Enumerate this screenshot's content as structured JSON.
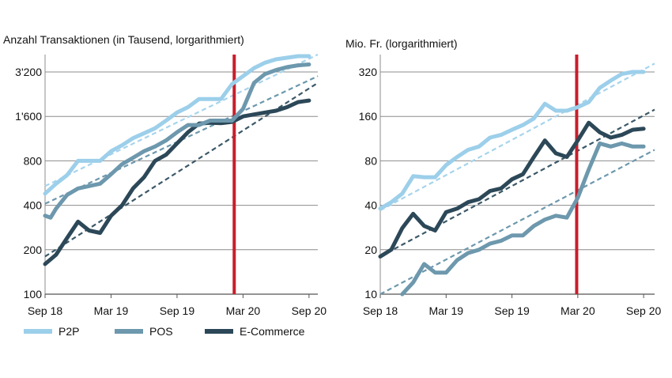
{
  "chart_data": [
    {
      "type": "line",
      "title": "Anzahl Transaktionen (in Tausend, lorgarithmiert)",
      "xlabel": "",
      "ylabel": "",
      "y_scale": "log",
      "ylim": [
        100,
        4200
      ],
      "y_ticks": [
        100,
        200,
        400,
        800,
        1600,
        3200
      ],
      "y_tick_labels": [
        "100",
        "200",
        "400",
        "800",
        "1'600",
        "3'200"
      ],
      "x_ticks": [
        "Sep 18",
        "Mar 19",
        "Sep 19",
        "Mar 20",
        "Sep 20"
      ],
      "x_tick_months": [
        0,
        6,
        12,
        18,
        24
      ],
      "x_range_months": [
        0,
        24.8
      ],
      "marker_month": 17.2,
      "grid": true,
      "legend": "bottom",
      "series": [
        {
          "name": "P2P",
          "color": "#9ccfea",
          "x": [
            0,
            1,
            2,
            3,
            4,
            5,
            6,
            7,
            8,
            9,
            10,
            11,
            12,
            13,
            14,
            15,
            16,
            17,
            18,
            19,
            20,
            21,
            22,
            23,
            24
          ],
          "values": [
            480,
            560,
            640,
            800,
            800,
            800,
            930,
            1020,
            1140,
            1230,
            1330,
            1500,
            1700,
            1850,
            2100,
            2100,
            2100,
            2650,
            3000,
            3400,
            3700,
            3900,
            4000,
            4100,
            4100
          ]
        },
        {
          "name": "POS",
          "color": "#6d98ad",
          "x": [
            0,
            0.5,
            1,
            2,
            3,
            4,
            5,
            6,
            7,
            8,
            9,
            10,
            11,
            12,
            13,
            14,
            15,
            16,
            17,
            18,
            19,
            20,
            21,
            22,
            23,
            24
          ],
          "values": [
            340,
            330,
            380,
            470,
            520,
            540,
            560,
            650,
            760,
            840,
            930,
            1000,
            1100,
            1250,
            1400,
            1400,
            1500,
            1500,
            1500,
            1800,
            2700,
            3100,
            3300,
            3450,
            3550,
            3600
          ]
        },
        {
          "name": "E-Commerce",
          "color": "#2c4858",
          "x": [
            0,
            1,
            2,
            3,
            4,
            5,
            6,
            7,
            8,
            9,
            10,
            11,
            12,
            13,
            14,
            15,
            16,
            17,
            18,
            19,
            20,
            21,
            22,
            23,
            24
          ],
          "values": [
            160,
            185,
            240,
            310,
            270,
            260,
            340,
            400,
            520,
            620,
            800,
            880,
            1050,
            1250,
            1430,
            1450,
            1440,
            1470,
            1600,
            1650,
            1700,
            1750,
            1850,
            2000,
            2050
          ]
        }
      ],
      "trend_lines": [
        {
          "name": "P2P",
          "color": "#a7d4ec",
          "x": [
            0,
            24.8
          ],
          "values": [
            540,
            4200
          ]
        },
        {
          "name": "POS",
          "color": "#6d98ad",
          "x": [
            0,
            24.8
          ],
          "values": [
            410,
            3000
          ]
        },
        {
          "name": "E-Commerce",
          "color": "#3b5868",
          "x": [
            0,
            24.8
          ],
          "values": [
            180,
            2700
          ]
        }
      ]
    },
    {
      "type": "line",
      "title": "Mio. Fr. (lorgarithmiert)",
      "xlabel": "",
      "ylabel": "",
      "y_scale": "log",
      "ylim": [
        10,
        420
      ],
      "y_ticks": [
        10,
        20,
        40,
        80,
        160,
        320
      ],
      "y_tick_labels": [
        "10",
        "20",
        "40",
        "80",
        "160",
        "320"
      ],
      "x_ticks": [
        "Sep 18",
        "Mar 19",
        "Sep 19",
        "Mar 20",
        "Sep 20"
      ],
      "x_tick_months": [
        0,
        6,
        12,
        18,
        24
      ],
      "x_range_months": [
        0,
        25
      ],
      "marker_month": 17.9,
      "grid": true,
      "legend": "bottom",
      "series": [
        {
          "name": "P2P",
          "color": "#9ccfea",
          "x": [
            0,
            1,
            2,
            3,
            4,
            5,
            6,
            7,
            8,
            9,
            10,
            11,
            12,
            13,
            14,
            15,
            16,
            17,
            18,
            19,
            20,
            21,
            22,
            23,
            24
          ],
          "values": [
            38,
            42,
            48,
            63,
            62,
            62,
            75,
            85,
            95,
            100,
            115,
            120,
            130,
            140,
            155,
            195,
            175,
            175,
            185,
            200,
            250,
            280,
            310,
            320,
            320
          ]
        },
        {
          "name": "POS",
          "color": "#6d98ad",
          "x": [
            2,
            3,
            4,
            5,
            6,
            7,
            8,
            9,
            10,
            11,
            12,
            13,
            14,
            15,
            16,
            17,
            18,
            19,
            20,
            21,
            22,
            23,
            24
          ],
          "values": [
            10,
            12,
            16,
            14,
            14,
            17,
            19,
            20,
            22,
            23,
            25,
            25,
            29,
            32,
            34,
            33,
            45,
            70,
            105,
            100,
            105,
            100,
            100
          ]
        },
        {
          "name": "E-Commerce",
          "color": "#2c4858",
          "x": [
            0,
            1,
            2,
            3,
            4,
            5,
            6,
            7,
            8,
            9,
            10,
            11,
            12,
            13,
            14,
            15,
            16,
            17,
            18,
            19,
            20,
            21,
            22,
            23,
            24
          ],
          "values": [
            18,
            20,
            28,
            35,
            29,
            27,
            36,
            38,
            42,
            44,
            50,
            52,
            60,
            65,
            85,
            110,
            90,
            85,
            110,
            145,
            125,
            115,
            120,
            130,
            132
          ]
        }
      ],
      "trend_lines": [
        {
          "name": "P2P",
          "color": "#a7d4ec",
          "x": [
            0,
            25
          ],
          "values": [
            37,
            365
          ]
        },
        {
          "name": "POS",
          "color": "#6d98ad",
          "x": [
            0,
            25
          ],
          "values": [
            10,
            95
          ]
        },
        {
          "name": "E-Commerce",
          "color": "#3b5868",
          "x": [
            0,
            25
          ],
          "values": [
            18,
            178
          ]
        }
      ]
    }
  ],
  "legend": {
    "items": [
      {
        "label": "P2P",
        "color": "#9ccfea"
      },
      {
        "label": "POS",
        "color": "#6d98ad"
      },
      {
        "label": "E-Commerce",
        "color": "#2c4858"
      }
    ]
  },
  "marker_color": "#c81e2b"
}
